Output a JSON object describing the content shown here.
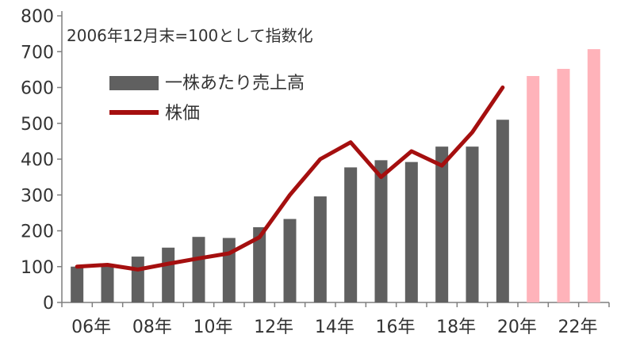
{
  "chart_data": {
    "type": "bar",
    "annotation": "2006年12月末=100として指数化",
    "ylim": [
      0,
      800
    ],
    "y_ticks": [
      "0",
      "100",
      "200",
      "300",
      "400",
      "500",
      "600",
      "700",
      "800"
    ],
    "x_tick_labels": [
      "06年",
      "08年",
      "10年",
      "12年",
      "14年",
      "16年",
      "18年",
      "20年",
      "22年"
    ],
    "categories": [
      "06",
      "07",
      "08",
      "09",
      "10",
      "11",
      "12",
      "13",
      "14",
      "15",
      "16",
      "17",
      "18",
      "19",
      "20",
      "21",
      "22",
      "23"
    ],
    "series": [
      {
        "name": "一株あたり売上高",
        "kind": "bar",
        "color": "#606060",
        "forecast_color": "#ffb3ba",
        "values": [
          100,
          105,
          128,
          153,
          183,
          180,
          210,
          233,
          296,
          377,
          397,
          392,
          435,
          435,
          510,
          632,
          652,
          707
        ],
        "forecast_from_index": 15
      },
      {
        "name": "株価",
        "kind": "line",
        "color": "#a50f0f",
        "values": [
          100,
          105,
          92,
          108,
          123,
          137,
          182,
          300,
          400,
          447,
          350,
          422,
          382,
          475,
          600,
          null,
          null,
          null
        ]
      }
    ],
    "legend_position": "top-left",
    "grid": false
  }
}
